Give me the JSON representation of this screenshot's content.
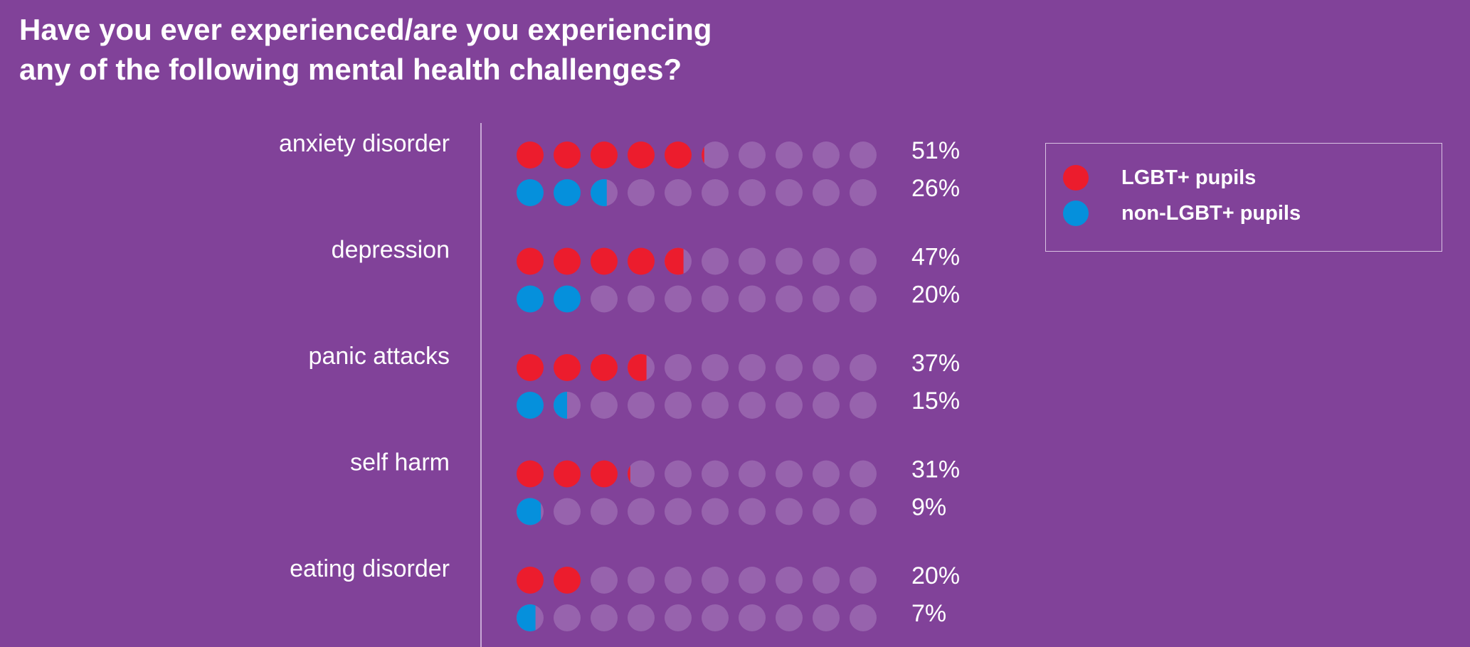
{
  "title": {
    "line1": "Have you ever experienced/are you experiencing",
    "line2": "any of the following mental health challenges?"
  },
  "colors": {
    "background": "#814299",
    "lgbt": "#ec1c2d",
    "non_lgbt": "#0590dc",
    "empty_dot": "#9763ad",
    "axis": "#c9a9d6"
  },
  "legend": {
    "items": [
      {
        "label": "LGBT+ pupils",
        "color": "#ec1c2d"
      },
      {
        "label": "non-LGBT+ pupils",
        "color": "#0590dc"
      }
    ]
  },
  "chart_data": {
    "type": "pictogram",
    "units": "percent",
    "dots_per_row": 10,
    "each_dot_represents": 10,
    "categories": [
      "anxiety disorder",
      "depression",
      "panic attacks",
      "self harm",
      "eating disorder"
    ],
    "series": [
      {
        "name": "LGBT+ pupils",
        "values": [
          51,
          47,
          37,
          31,
          20
        ],
        "labels": [
          "51%",
          "47%",
          "37%",
          "31%",
          "20%"
        ]
      },
      {
        "name": "non-LGBT+ pupils",
        "values": [
          26,
          20,
          15,
          9,
          7
        ],
        "labels": [
          "26%",
          "20%",
          "15%",
          "9%",
          "7%"
        ]
      }
    ]
  }
}
